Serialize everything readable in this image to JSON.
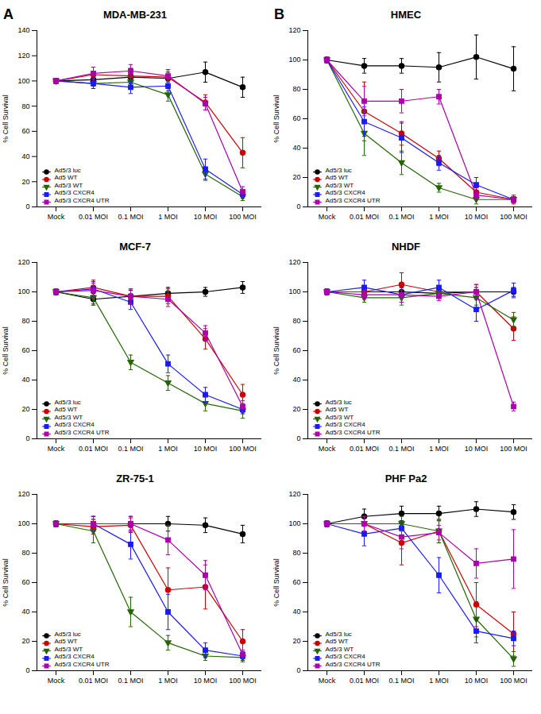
{
  "chart_data": [
    {
      "type": "line",
      "title": "MDA-MB-231",
      "ylabel": "% Cell Survival",
      "annotations": [
        "A"
      ],
      "categories": [
        "Mock",
        "0.01 MOI",
        "0.1 MOI",
        "1 MOI",
        "10 MOI",
        "100 MOI"
      ],
      "ylim": [
        0,
        140
      ],
      "yticks": [
        0,
        20,
        40,
        60,
        80,
        100,
        120,
        140
      ],
      "grid": false,
      "legend": "lower left",
      "series": [
        {
          "name": "Ad5/3 luc",
          "color": "black",
          "marker": "circle",
          "values": [
            100,
            101,
            103,
            102,
            107,
            95
          ],
          "errors": [
            2,
            5,
            5,
            5,
            8,
            8
          ]
        },
        {
          "name": "Ad5 WT",
          "color": "#cc0000",
          "marker": "circle",
          "values": [
            100,
            105,
            104,
            103,
            83,
            43
          ],
          "errors": [
            2,
            6,
            6,
            6,
            6,
            12
          ]
        },
        {
          "name": "Ad5/3 WT",
          "color": "#226600",
          "marker": "triangle_down",
          "values": [
            100,
            98,
            99,
            89,
            26,
            8
          ],
          "errors": [
            2,
            4,
            4,
            5,
            5,
            3
          ]
        },
        {
          "name": "Ad5/3 CXCR4",
          "color": "#1a1aff",
          "marker": "square",
          "values": [
            100,
            98,
            95,
            96,
            30,
            10
          ],
          "errors": [
            2,
            4,
            5,
            4,
            8,
            3
          ]
        },
        {
          "name": "Ad5/3 CXCR4 UTR",
          "color": "#aa00aa",
          "marker": "square",
          "values": [
            100,
            106,
            108,
            104,
            82,
            12
          ],
          "errors": [
            2,
            5,
            5,
            5,
            5,
            4
          ]
        }
      ]
    },
    {
      "type": "line",
      "title": "HMEC",
      "ylabel": "% Cell Survival",
      "annotations": [
        "B"
      ],
      "categories": [
        "Mock",
        "0.01 MOI",
        "0.1 MOI",
        "1 MOI",
        "10 MOI",
        "100 MOI"
      ],
      "ylim": [
        0,
        120
      ],
      "yticks": [
        0,
        20,
        40,
        60,
        80,
        100,
        120
      ],
      "grid": false,
      "legend": "lower left",
      "series": [
        {
          "name": "Ad5/3 luc",
          "color": "black",
          "marker": "circle",
          "values": [
            100,
            96,
            96,
            95,
            102,
            94
          ],
          "errors": [
            2,
            5,
            5,
            10,
            15,
            15
          ]
        },
        {
          "name": "Ad5 WT",
          "color": "#cc0000",
          "marker": "circle",
          "values": [
            100,
            65,
            50,
            33,
            10,
            5
          ],
          "errors": [
            2,
            20,
            8,
            5,
            3,
            3
          ]
        },
        {
          "name": "Ad5/3 WT",
          "color": "#226600",
          "marker": "triangle_down",
          "values": [
            100,
            50,
            30,
            13,
            5,
            5
          ],
          "errors": [
            2,
            15,
            8,
            3,
            3,
            2
          ]
        },
        {
          "name": "Ad5/3 CXCR4",
          "color": "#1a1aff",
          "marker": "square",
          "values": [
            100,
            58,
            47,
            30,
            15,
            5
          ],
          "errors": [
            2,
            10,
            10,
            5,
            5,
            2
          ]
        },
        {
          "name": "Ad5/3 CXCR4 UTR",
          "color": "#aa00aa",
          "marker": "square",
          "values": [
            100,
            72,
            72,
            75,
            8,
            5
          ],
          "errors": [
            2,
            10,
            8,
            5,
            3,
            2
          ]
        }
      ]
    },
    {
      "type": "line",
      "title": "MCF-7",
      "ylabel": "% Cell Survival",
      "categories": [
        "Mock",
        "0.01 MOI",
        "0.1 MOI",
        "1 MOI",
        "10 MOI",
        "100 MOI"
      ],
      "ylim": [
        0,
        120
      ],
      "yticks": [
        0,
        20,
        40,
        60,
        80,
        100,
        120
      ],
      "grid": false,
      "legend": "lower left",
      "series": [
        {
          "name": "Ad5/3 luc",
          "color": "black",
          "marker": "circle",
          "values": [
            100,
            95,
            97,
            99,
            100,
            103
          ],
          "errors": [
            2,
            4,
            4,
            4,
            3,
            4
          ]
        },
        {
          "name": "Ad5 WT",
          "color": "#cc0000",
          "marker": "circle",
          "values": [
            100,
            103,
            97,
            97,
            68,
            30
          ],
          "errors": [
            2,
            5,
            5,
            5,
            7,
            7
          ]
        },
        {
          "name": "Ad5/3 WT",
          "color": "#226600",
          "marker": "triangle_down",
          "values": [
            100,
            96,
            52,
            38,
            24,
            19
          ],
          "errors": [
            2,
            4,
            5,
            5,
            5,
            5
          ]
        },
        {
          "name": "Ad5/3 CXCR4",
          "color": "#1a1aff",
          "marker": "square",
          "values": [
            100,
            102,
            93,
            51,
            30,
            20
          ],
          "errors": [
            2,
            5,
            5,
            6,
            5,
            3
          ]
        },
        {
          "name": "Ad5/3 CXCR4 UTR",
          "color": "#aa00aa",
          "marker": "square",
          "values": [
            100,
            101,
            97,
            95,
            72,
            22
          ],
          "errors": [
            2,
            5,
            5,
            5,
            5,
            4
          ]
        }
      ]
    },
    {
      "type": "line",
      "title": "NHDF",
      "ylabel": "% Cell Survival",
      "categories": [
        "Mock",
        "0.01 MOI",
        "0.1 MOI",
        "1 MOI",
        "10 MOI",
        "100 MOI"
      ],
      "ylim": [
        0,
        120
      ],
      "yticks": [
        0,
        20,
        40,
        60,
        80,
        100,
        120
      ],
      "grid": false,
      "legend": "lower left",
      "series": [
        {
          "name": "Ad5/3 luc",
          "color": "black",
          "marker": "circle",
          "values": [
            100,
            100,
            100,
            99,
            100,
            100
          ],
          "errors": [
            2,
            3,
            3,
            3,
            3,
            3
          ]
        },
        {
          "name": "Ad5 WT",
          "color": "#cc0000",
          "marker": "circle",
          "values": [
            100,
            100,
            105,
            100,
            100,
            75
          ],
          "errors": [
            2,
            4,
            8,
            4,
            5,
            8
          ]
        },
        {
          "name": "Ad5/3 WT",
          "color": "#226600",
          "marker": "triangle_down",
          "values": [
            100,
            96,
            96,
            99,
            96,
            81
          ],
          "errors": [
            2,
            3,
            5,
            3,
            5,
            5
          ]
        },
        {
          "name": "Ad5/3 CXCR4",
          "color": "#1a1aff",
          "marker": "square",
          "values": [
            100,
            103,
            98,
            103,
            88,
            101
          ],
          "errors": [
            2,
            5,
            5,
            5,
            8,
            5
          ]
        },
        {
          "name": "Ad5/3 CXCR4 UTR",
          "color": "#aa00aa",
          "marker": "square",
          "values": [
            100,
            98,
            98,
            97,
            100,
            22
          ],
          "errors": [
            2,
            3,
            5,
            3,
            5,
            3
          ]
        }
      ]
    },
    {
      "type": "line",
      "title": "ZR-75-1",
      "ylabel": "% Cell Survival",
      "categories": [
        "Mock",
        "0.01 MOI",
        "0.1 MOI",
        "1 MOI",
        "10 MOI",
        "100 MOI"
      ],
      "ylim": [
        0,
        120
      ],
      "yticks": [
        0,
        20,
        40,
        60,
        80,
        100,
        120
      ],
      "grid": false,
      "legend": "lower left",
      "series": [
        {
          "name": "Ad5/3 luc",
          "color": "black",
          "marker": "circle",
          "values": [
            100,
            100,
            100,
            100,
            99,
            93
          ],
          "errors": [
            2,
            5,
            5,
            5,
            5,
            6
          ]
        },
        {
          "name": "Ad5 WT",
          "color": "#cc0000",
          "marker": "circle",
          "values": [
            100,
            98,
            99,
            55,
            57,
            20
          ],
          "errors": [
            2,
            5,
            5,
            15,
            15,
            8
          ]
        },
        {
          "name": "Ad5/3 WT",
          "color": "#226600",
          "marker": "triangle_down",
          "values": [
            100,
            95,
            40,
            19,
            10,
            9
          ],
          "errors": [
            2,
            8,
            10,
            5,
            3,
            3
          ]
        },
        {
          "name": "Ad5/3 CXCR4",
          "color": "#1a1aff",
          "marker": "square",
          "values": [
            100,
            100,
            86,
            40,
            14,
            10
          ],
          "errors": [
            2,
            5,
            10,
            12,
            5,
            3
          ]
        },
        {
          "name": "Ad5/3 CXCR4 UTR",
          "color": "#aa00aa",
          "marker": "square",
          "values": [
            100,
            100,
            100,
            89,
            65,
            11
          ],
          "errors": [
            2,
            5,
            5,
            10,
            10,
            3
          ]
        }
      ]
    },
    {
      "type": "line",
      "title": "PHF Pa2",
      "ylabel": "% Cell Survival",
      "categories": [
        "Mock",
        "0.01 MOI",
        "0.1 MOI",
        "1 MOI",
        "10 MOI",
        "100 MOI"
      ],
      "ylim": [
        0,
        120
      ],
      "yticks": [
        0,
        20,
        40,
        60,
        80,
        100,
        120
      ],
      "grid": false,
      "legend": "lower left",
      "series": [
        {
          "name": "Ad5/3 luc",
          "color": "black",
          "marker": "circle",
          "values": [
            100,
            105,
            107,
            107,
            110,
            108
          ],
          "errors": [
            2,
            5,
            5,
            5,
            5,
            5
          ]
        },
        {
          "name": "Ad5 WT",
          "color": "#cc0000",
          "marker": "circle",
          "values": [
            100,
            100,
            87,
            95,
            45,
            25
          ],
          "errors": [
            2,
            5,
            15,
            8,
            15,
            15
          ]
        },
        {
          "name": "Ad5/3 WT",
          "color": "#226600",
          "marker": "triangle_down",
          "values": [
            100,
            100,
            100,
            95,
            35,
            8
          ],
          "errors": [
            2,
            5,
            5,
            8,
            12,
            5
          ]
        },
        {
          "name": "Ad5/3 CXCR4",
          "color": "#1a1aff",
          "marker": "square",
          "values": [
            100,
            93,
            97,
            65,
            27,
            22
          ],
          "errors": [
            2,
            8,
            5,
            12,
            8,
            5
          ]
        },
        {
          "name": "Ad5/3 CXCR4 UTR",
          "color": "#aa00aa",
          "marker": "square",
          "values": [
            100,
            100,
            91,
            94,
            73,
            76
          ],
          "errors": [
            2,
            5,
            8,
            5,
            10,
            20
          ]
        }
      ]
    }
  ]
}
